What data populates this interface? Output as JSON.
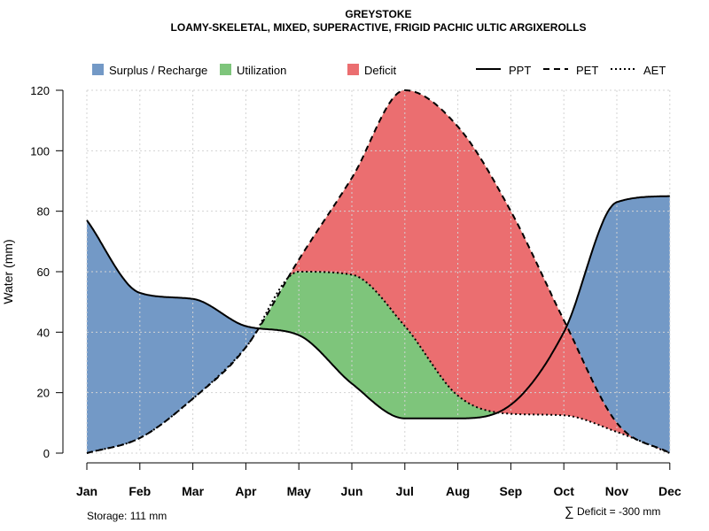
{
  "chart_data": {
    "type": "area",
    "title": "GREYSTOKE",
    "subtitle": "LOAMY-SKELETAL, MIXED, SUPERACTIVE, FRIGID PACHIC ULTIC ARGIXEROLLS",
    "ylabel": "Water (mm)",
    "xlabel": "",
    "ylim": [
      0,
      120
    ],
    "yticks": [
      0,
      20,
      40,
      60,
      80,
      100,
      120
    ],
    "categories": [
      "Jan",
      "Feb",
      "Mar",
      "Apr",
      "May",
      "Jun",
      "Jul",
      "Aug",
      "Sep",
      "Oct",
      "Nov",
      "Dec"
    ],
    "grid": true,
    "series": [
      {
        "name": "PPT",
        "style": "solid",
        "values": [
          77,
          53,
          51,
          42,
          39,
          23,
          11.5,
          11.5,
          16,
          40,
          83,
          85
        ]
      },
      {
        "name": "PET",
        "style": "dashed",
        "values": [
          0,
          5,
          18,
          35,
          64,
          91,
          120,
          108,
          80,
          44,
          10,
          0
        ]
      },
      {
        "name": "AET",
        "style": "dotted",
        "values": [
          0,
          5,
          18,
          35,
          60,
          59,
          42,
          19,
          13,
          12.5,
          7,
          0
        ]
      }
    ],
    "fill_legend": [
      {
        "label": "Surplus / Recharge",
        "color": "#7399C6"
      },
      {
        "label": "Utilization",
        "color": "#7EC57B"
      },
      {
        "label": "Deficit",
        "color": "#EB6E70"
      }
    ],
    "line_legend": [
      {
        "label": "PPT",
        "style": "solid"
      },
      {
        "label": "PET",
        "style": "dashed"
      },
      {
        "label": "AET",
        "style": "dotted"
      }
    ],
    "legend_position": "top",
    "annotations": {
      "storage": "Storage: 111 mm",
      "deficit": "Deficit = -300 mm",
      "deficit_symbol": "∑"
    }
  },
  "colors": {
    "surplus": "#7399C6",
    "utilization": "#7EC57B",
    "deficit": "#EB6E70",
    "grid": "#d3d3d3"
  }
}
